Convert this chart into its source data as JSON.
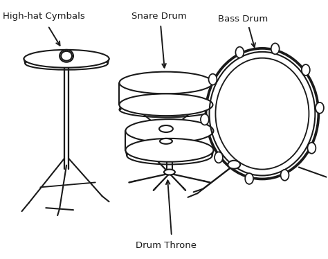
{
  "bg_color": "#ffffff",
  "line_color": "#1a1a1a",
  "lw": 1.5,
  "labels": {
    "hihat": "High-hat Cymbals",
    "snare": "Snare Drum",
    "bass": "Bass Drum",
    "throne": "Drum Throne"
  }
}
